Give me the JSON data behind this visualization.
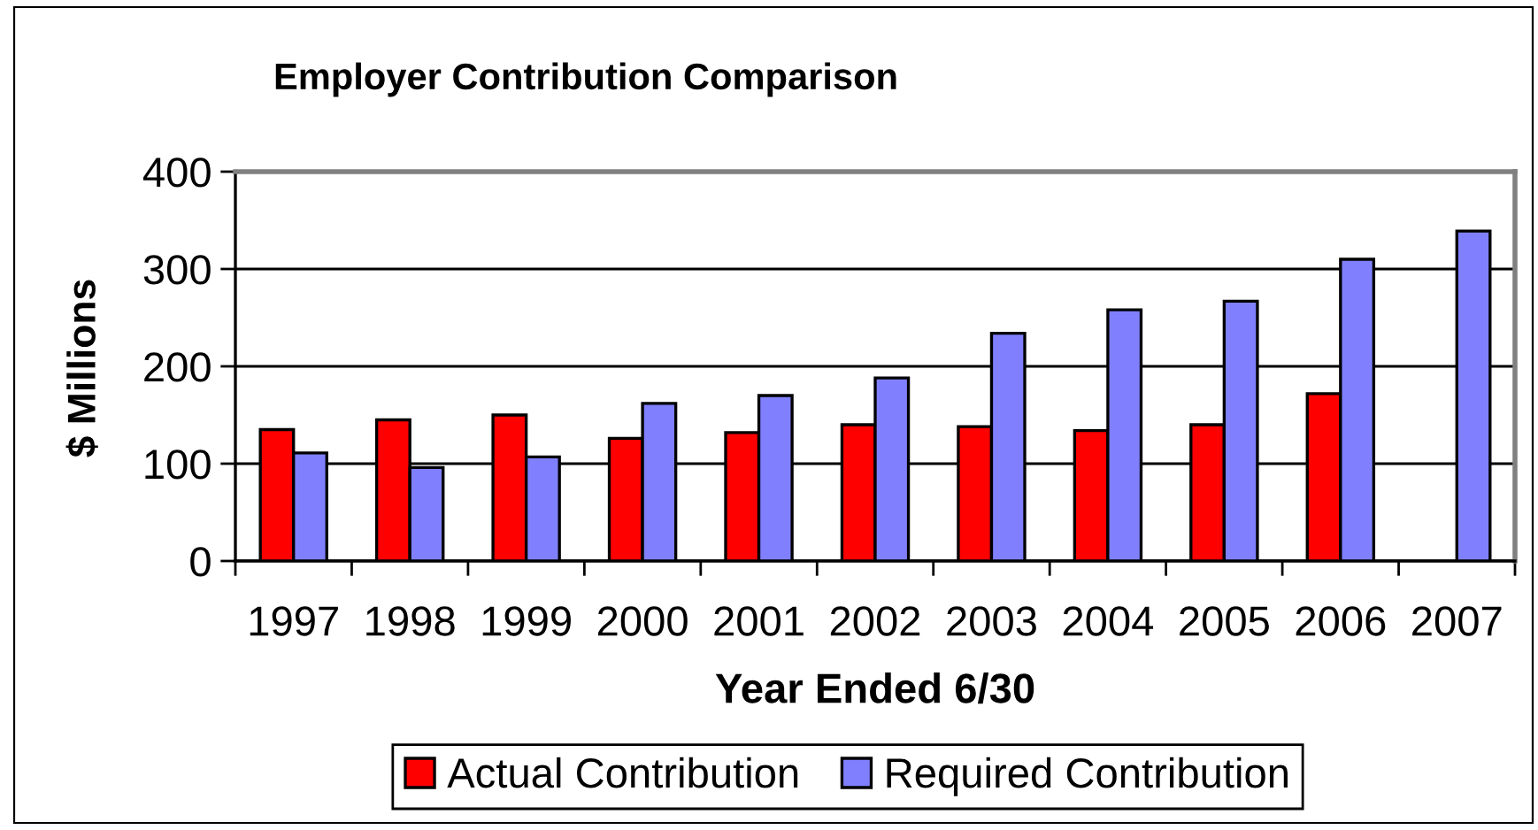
{
  "chart_data": {
    "type": "bar",
    "title": "Employer Contribution Comparison",
    "xlabel": "Year Ended 6/30",
    "ylabel": "$ Millions",
    "categories": [
      "1997",
      "1998",
      "1999",
      "2000",
      "2001",
      "2002",
      "2003",
      "2004",
      "2005",
      "2006",
      "2007"
    ],
    "series": [
      {
        "name": "Actual Contribution",
        "color": "#ff0000",
        "values": [
          135,
          145,
          150,
          126,
          132,
          140,
          138,
          134,
          140,
          172,
          null
        ]
      },
      {
        "name": "Required Contribution",
        "color": "#8080ff",
        "values": [
          111,
          96,
          107,
          162,
          170,
          188,
          234,
          258,
          267,
          310,
          339
        ]
      }
    ],
    "ylim": [
      0,
      400
    ],
    "yticks": [
      0,
      100,
      200,
      300,
      400
    ],
    "grid": "y",
    "legend": "bottom"
  }
}
